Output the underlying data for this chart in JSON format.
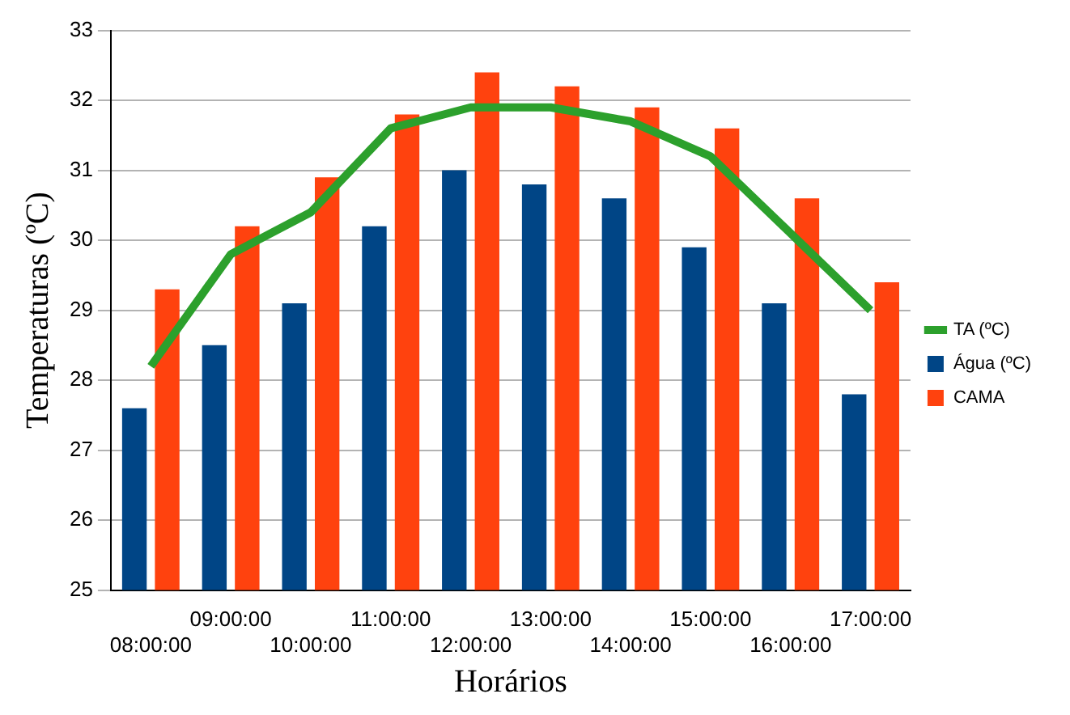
{
  "chart_data": {
    "type": "bar",
    "xlabel": "Horários",
    "ylabel": "Temperaturas (ºC)",
    "categories": [
      "08:00:00",
      "09:00:00",
      "10:00:00",
      "11:00:00",
      "12:00:00",
      "13:00:00",
      "14:00:00",
      "15:00:00",
      "16:00:00",
      "17:00:00"
    ],
    "series": [
      {
        "name": "Água (ºC)",
        "color": "#004586",
        "values": [
          27.6,
          28.5,
          29.1,
          30.2,
          31.0,
          30.8,
          30.6,
          29.9,
          29.1,
          27.8
        ]
      },
      {
        "name": "CAMA",
        "color": "#ff420e",
        "values": [
          29.3,
          30.2,
          30.9,
          31.8,
          32.4,
          32.2,
          31.9,
          31.6,
          30.6,
          29.4
        ]
      },
      {
        "name": "TA (ºC)",
        "type": "line",
        "color": "#2ca02c",
        "values": [
          28.2,
          29.8,
          30.4,
          31.6,
          31.9,
          31.9,
          31.7,
          31.2,
          30.1,
          29.0
        ]
      }
    ],
    "ylim": [
      25,
      33
    ],
    "yticks": [
      25,
      26,
      27,
      28,
      29,
      30,
      31,
      32,
      33
    ],
    "grid": "y",
    "legend": "right",
    "marker": "none"
  }
}
